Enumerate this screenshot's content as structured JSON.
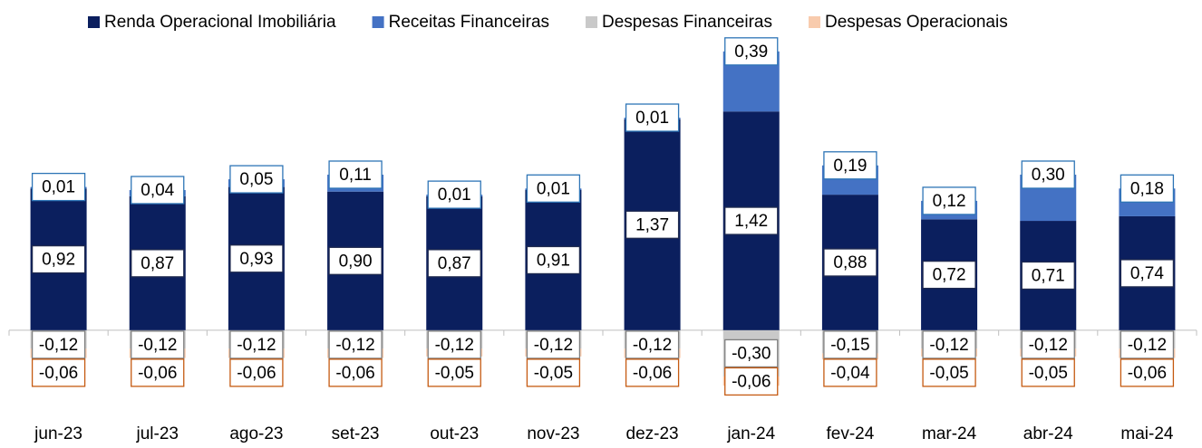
{
  "chart_data": {
    "type": "stacked_bar",
    "categories": [
      "jun-23",
      "jul-23",
      "ago-23",
      "set-23",
      "out-23",
      "nov-23",
      "dez-23",
      "jan-24",
      "fev-24",
      "mar-24",
      "abr-24",
      "mai-24"
    ],
    "ylim": [
      -0.5,
      1.85
    ],
    "legend": "top",
    "series": [
      {
        "name": "Renda Operacional Imobiliária",
        "color": "#0b1f5e",
        "label_border": "#1f2a4f",
        "values": [
          0.92,
          0.87,
          0.93,
          0.9,
          0.87,
          0.91,
          1.37,
          1.42,
          0.88,
          0.72,
          0.71,
          0.74
        ],
        "value_labels": [
          "0,92",
          "0,87",
          "0,93",
          "0,90",
          "0,87",
          "0,91",
          "1,37",
          "1,42",
          "0,88",
          "0,72",
          "0,71",
          "0,74"
        ]
      },
      {
        "name": "Receitas Financeiras",
        "color": "#4472c4",
        "label_border": "#2e75b6",
        "values": [
          0.01,
          0.04,
          0.05,
          0.11,
          0.01,
          0.01,
          0.01,
          0.39,
          0.19,
          0.12,
          0.3,
          0.18
        ],
        "value_labels": [
          "0,01",
          "0,04",
          "0,05",
          "0,11",
          "0,01",
          "0,01",
          "0,01",
          "0,39",
          "0,19",
          "0,12",
          "0,30",
          "0,18"
        ]
      },
      {
        "name": "Despesas Financeiras",
        "color": "#c9c9c9",
        "label_border": "#7f7f7f",
        "values": [
          -0.12,
          -0.12,
          -0.12,
          -0.12,
          -0.12,
          -0.12,
          -0.12,
          -0.3,
          -0.15,
          -0.12,
          -0.12,
          -0.12
        ],
        "value_labels": [
          "-0,12",
          "-0,12",
          "-0,12",
          "-0,12",
          "-0,12",
          "-0,12",
          "-0,12",
          "-0,30",
          "-0,15",
          "-0,12",
          "-0,12",
          "-0,12"
        ]
      },
      {
        "name": "Despesas Operacionais",
        "color": "#f8cbad",
        "label_border": "#c55a11",
        "values": [
          -0.06,
          -0.06,
          -0.06,
          -0.06,
          -0.05,
          -0.05,
          -0.06,
          -0.06,
          -0.04,
          -0.05,
          -0.05,
          -0.06
        ],
        "value_labels": [
          "-0,06",
          "-0,06",
          "-0,06",
          "-0,06",
          "-0,05",
          "-0,05",
          "-0,06",
          "-0,06",
          "-0,04",
          "-0,05",
          "-0,05",
          "-0,06"
        ]
      }
    ]
  }
}
